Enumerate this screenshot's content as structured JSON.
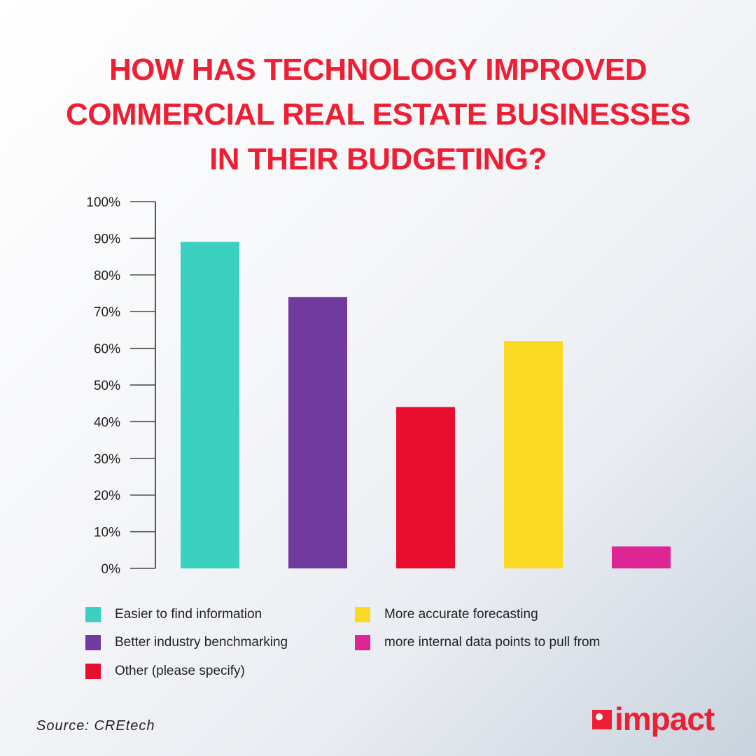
{
  "title_lines": [
    "HOW HAS TECHNOLOGY IMPROVED",
    "COMMERCIAL REAL ESTATE BUSINESSES",
    "IN THEIR BUDGETING?"
  ],
  "chart_data": {
    "type": "bar",
    "title": "HOW HAS TECHNOLOGY IMPROVED COMMERCIAL REAL ESTATE BUSINESSES IN THEIR BUDGETING?",
    "categories": [
      "Easier to find information",
      "Better industry benchmarking",
      "Other (please specify)",
      "More accurate forecasting",
      "more internal data points to pull from"
    ],
    "values": [
      89,
      74,
      44,
      62,
      6
    ],
    "colors": [
      "#3ad1c1",
      "#713a9f",
      "#e90e2f",
      "#fad922",
      "#df2496"
    ],
    "ylim": [
      0,
      100
    ],
    "yticks": [
      "0%",
      "10%",
      "20%",
      "30%",
      "40%",
      "50%",
      "60%",
      "70%",
      "80%",
      "90%",
      "100%"
    ],
    "xlabel": "",
    "ylabel": "",
    "grid": false,
    "legend": "bottom"
  },
  "source": "Source: CREtech",
  "logo_text": "impact"
}
